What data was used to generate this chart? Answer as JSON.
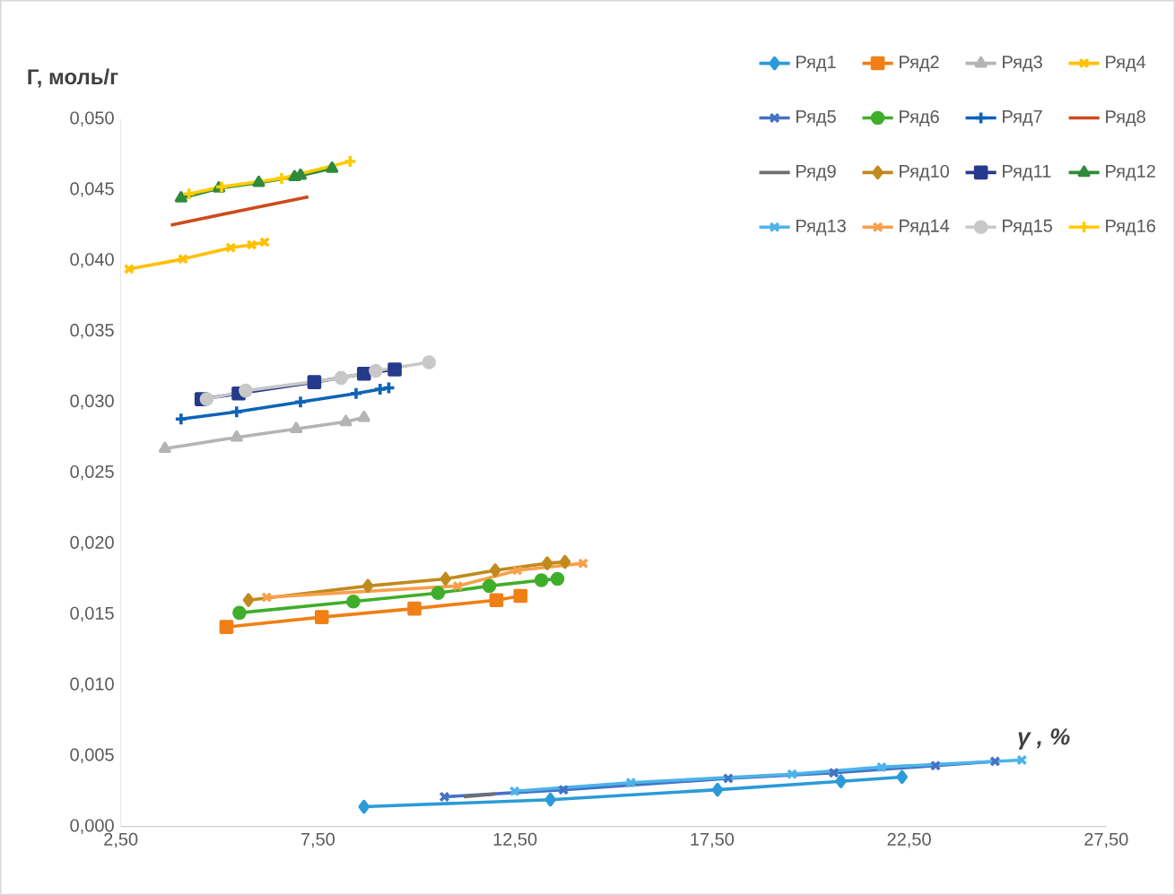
{
  "chart_data": {
    "type": "line",
    "ylabel": "Г, моль/г",
    "xlabel": "γ , %",
    "xlim": [
      2.5,
      27.5
    ],
    "ylim": [
      0,
      0.05
    ],
    "xticks": [
      {
        "value": 2.5,
        "label": "2,50"
      },
      {
        "value": 7.5,
        "label": "7,50"
      },
      {
        "value": 12.5,
        "label": "12,50"
      },
      {
        "value": 17.5,
        "label": "17,50"
      },
      {
        "value": 22.5,
        "label": "22,50"
      },
      {
        "value": 27.5,
        "label": "27,50"
      }
    ],
    "yticks": [
      {
        "value": 0,
        "label": "0,000"
      },
      {
        "value": 0.005,
        "label": "0,005"
      },
      {
        "value": 0.01,
        "label": "0,010"
      },
      {
        "value": 0.015,
        "label": "0,015"
      },
      {
        "value": 0.02,
        "label": "0,020"
      },
      {
        "value": 0.025,
        "label": "0,025"
      },
      {
        "value": 0.03,
        "label": "0,030"
      },
      {
        "value": 0.035,
        "label": "0,035"
      },
      {
        "value": 0.04,
        "label": "0,040"
      },
      {
        "value": 0.045,
        "label": "0,045"
      },
      {
        "value": 0.05,
        "label": "0,050"
      }
    ],
    "legend": "top right",
    "series": [
      {
        "name": "Ряд1",
        "color": "#2b9bd8",
        "marker": "diamond",
        "x": [
          8.67,
          13.4,
          17.64,
          20.77,
          22.32
        ],
        "values": [
          0.0014,
          0.0019,
          0.0026,
          0.0032,
          0.0035
        ]
      },
      {
        "name": "Ряд2",
        "color": "#f07f16",
        "marker": "square",
        "x": [
          5.18,
          7.6,
          9.95,
          12.03,
          12.64
        ],
        "values": [
          0.0141,
          0.0148,
          0.0154,
          0.016,
          0.0163
        ]
      },
      {
        "name": "Ряд3",
        "color": "#b4b4b4",
        "marker": "triangle",
        "x": [
          3.62,
          5.44,
          6.95,
          8.21,
          8.67
        ],
        "values": [
          0.0267,
          0.0275,
          0.0281,
          0.0286,
          0.0289
        ]
      },
      {
        "name": "Ряд4",
        "color": "#ffc000",
        "marker": "cross",
        "x": [
          2.71,
          4.08,
          5.29,
          5.82,
          6.15
        ],
        "values": [
          0.0394,
          0.0401,
          0.0409,
          0.0411,
          0.0413
        ]
      },
      {
        "name": "Ряд5",
        "color": "#4472c4",
        "marker": "cross",
        "x": [
          10.71,
          13.73,
          17.91,
          20.59,
          23.17,
          24.68
        ],
        "values": [
          0.0021,
          0.0026,
          0.0034,
          0.0038,
          0.0043,
          0.0046
        ]
      },
      {
        "name": "Ряд6",
        "color": "#3fae2a",
        "marker": "circle",
        "x": [
          5.51,
          8.4,
          10.55,
          11.85,
          13.17,
          13.58
        ],
        "values": [
          0.0151,
          0.0159,
          0.0165,
          0.017,
          0.0174,
          0.0175
        ]
      },
      {
        "name": "Ряд7",
        "color": "#0e63b8",
        "marker": "plus",
        "x": [
          4.03,
          5.44,
          7.06,
          8.47,
          9.08,
          9.3
        ],
        "values": [
          0.0288,
          0.0293,
          0.03,
          0.0306,
          0.0309,
          0.031
        ]
      },
      {
        "name": "Ряд8",
        "color": "#cf4a1a",
        "marker": "none",
        "x": [
          3.77,
          5.5,
          7.26
        ],
        "values": [
          0.0425,
          0.0435,
          0.0445
        ]
      },
      {
        "name": "Ряд9",
        "color": "#6e6e6e",
        "marker": "none",
        "x": [
          11.2,
          12.0
        ],
        "values": [
          0.0021,
          0.0023
        ]
      },
      {
        "name": "Ряд10",
        "color": "#c08a1e",
        "marker": "diamond",
        "x": [
          5.74,
          8.77,
          10.74,
          12.0,
          13.32,
          13.77
        ],
        "values": [
          0.016,
          0.017,
          0.0175,
          0.0181,
          0.0186,
          0.0187
        ]
      },
      {
        "name": "Ряд11",
        "color": "#263a8c",
        "marker": "square",
        "x": [
          4.55,
          5.49,
          7.41,
          8.67,
          9.45
        ],
        "values": [
          0.0302,
          0.0306,
          0.0314,
          0.032,
          0.0323
        ]
      },
      {
        "name": "Ряд12",
        "color": "#2e8b3a",
        "marker": "triangle",
        "x": [
          4.03,
          4.99,
          6.0,
          6.91,
          7.06,
          7.86
        ],
        "values": [
          0.0444,
          0.0451,
          0.0455,
          0.0459,
          0.046,
          0.0465
        ]
      },
      {
        "name": "Ряд13",
        "color": "#4db3ea",
        "marker": "cross",
        "x": [
          12.49,
          15.44,
          19.53,
          21.8,
          25.36
        ],
        "values": [
          0.0025,
          0.0031,
          0.0037,
          0.0042,
          0.0047
        ]
      },
      {
        "name": "Ряд14",
        "color": "#f7a04a",
        "marker": "cross",
        "x": [
          6.2,
          11.05,
          12.56,
          14.23
        ],
        "values": [
          0.0162,
          0.017,
          0.0181,
          0.0186
        ]
      },
      {
        "name": "Ряд15",
        "color": "#c8c8c8",
        "marker": "circle",
        "x": [
          4.68,
          5.67,
          8.09,
          8.97,
          10.32
        ],
        "values": [
          0.0302,
          0.0308,
          0.0317,
          0.0322,
          0.0328
        ]
      },
      {
        "name": "Ряд16",
        "color": "#ffcc00",
        "marker": "plus",
        "x": [
          4.23,
          5.06,
          6.58,
          8.32
        ],
        "values": [
          0.0447,
          0.0452,
          0.0458,
          0.047
        ]
      }
    ]
  }
}
